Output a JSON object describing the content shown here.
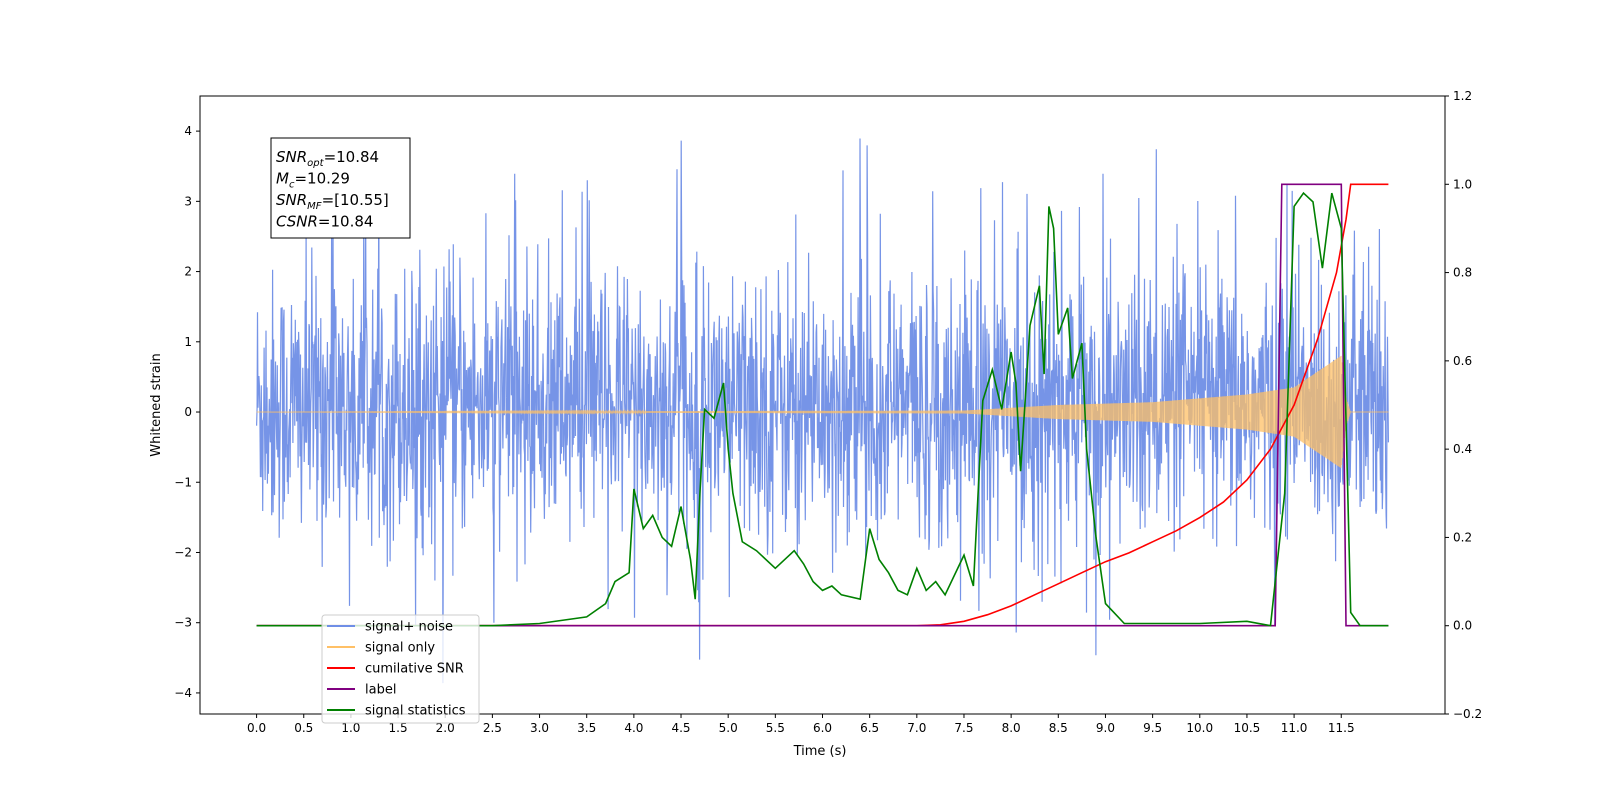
{
  "chart_data": {
    "type": "line",
    "xlabel": "Time (s)",
    "ylabel": "Whitened strain",
    "ylabel_right": "",
    "xlim": [
      -0.6,
      12.6
    ],
    "ylim": [
      -4.3,
      4.5
    ],
    "ylim_right": [
      -0.2,
      1.2
    ],
    "x_ticks": [
      0.0,
      0.5,
      1.0,
      1.5,
      2.0,
      2.5,
      3.0,
      3.5,
      4.0,
      4.5,
      5.0,
      5.5,
      6.0,
      6.5,
      7.0,
      7.5,
      8.0,
      8.5,
      9.0,
      9.5,
      10.0,
      10.5,
      11.0,
      11.5
    ],
    "x_tick_labels": [
      "0.0",
      "0.5",
      "1.0",
      "1.5",
      "2.0",
      "2.5",
      "3.0",
      "3.5",
      "4.0",
      "4.5",
      "5.0",
      "5.5",
      "6.0",
      "6.5",
      "7.0",
      "7.5",
      "8.0",
      "8.5",
      "9.0",
      "9.5",
      "10.0",
      "10.5",
      "11.0",
      "11.5"
    ],
    "y_ticks": [
      4,
      3,
      2,
      1,
      0,
      -1,
      -2,
      -3,
      -4
    ],
    "y_tick_labels": [
      "4",
      "3",
      "2",
      "1",
      "0",
      "−1",
      "−2",
      "−3",
      "−4"
    ],
    "y_ticks_right": [
      1.2,
      1.0,
      0.8,
      0.6,
      0.4,
      0.2,
      0.0,
      -0.2
    ],
    "y_tick_labels_right": [
      "1.2",
      "1.0",
      "0.8",
      "0.6",
      "0.4",
      "0.2",
      "0.0",
      "−0.2"
    ],
    "grid": false,
    "legend_position": "lower-left",
    "annotation_box": {
      "lines": [
        {
          "sym": "SNR",
          "sub": "opt",
          "val": "=10.84"
        },
        {
          "sym": "M",
          "sub": "c",
          "val": "=10.29"
        },
        {
          "sym": "SNR",
          "sub": "MF",
          "val": "=[10.55]"
        },
        {
          "sym": "CSNR",
          "sub": "",
          "val": "=10.84"
        }
      ]
    },
    "series": [
      {
        "name": "signal+ noise",
        "axis": "left",
        "color": "#6f8ee6",
        "kind": "noise",
        "x_range": [
          0.0,
          12.0
        ],
        "typical_envelope": [
          -2.0,
          2.3
        ],
        "peak_max": 4.1,
        "peak_min": -3.9
      },
      {
        "name": "signal only",
        "axis": "left",
        "color": "#ffc066",
        "kind": "chirp",
        "x_range": [
          0.0,
          12.0
        ],
        "amplitude_points": [
          [
            0,
            0.0
          ],
          [
            7.5,
            0.02
          ],
          [
            8.5,
            0.1
          ],
          [
            9.5,
            0.14
          ],
          [
            10.5,
            0.25
          ],
          [
            11.0,
            0.35
          ],
          [
            11.5,
            0.8
          ],
          [
            11.55,
            0.2
          ],
          [
            11.6,
            0.0
          ],
          [
            12.0,
            0.0
          ]
        ]
      },
      {
        "name": "cumilative SNR",
        "axis": "right",
        "color": "#ff0000",
        "points": [
          [
            0,
            0
          ],
          [
            7.0,
            0
          ],
          [
            7.25,
            0.002
          ],
          [
            7.5,
            0.01
          ],
          [
            7.75,
            0.025
          ],
          [
            8.0,
            0.045
          ],
          [
            8.25,
            0.07
          ],
          [
            8.5,
            0.095
          ],
          [
            8.75,
            0.12
          ],
          [
            9.0,
            0.145
          ],
          [
            9.25,
            0.165
          ],
          [
            9.5,
            0.19
          ],
          [
            9.75,
            0.215
          ],
          [
            10.0,
            0.245
          ],
          [
            10.25,
            0.28
          ],
          [
            10.5,
            0.33
          ],
          [
            10.75,
            0.4
          ],
          [
            11.0,
            0.5
          ],
          [
            11.25,
            0.65
          ],
          [
            11.45,
            0.8
          ],
          [
            11.55,
            0.92
          ],
          [
            11.6,
            1.0
          ],
          [
            12.0,
            1.0
          ]
        ]
      },
      {
        "name": "label",
        "axis": "right",
        "color": "#800080",
        "points": [
          [
            0,
            0
          ],
          [
            10.8,
            0
          ],
          [
            10.87,
            1.0
          ],
          [
            11.5,
            1.0
          ],
          [
            11.55,
            0
          ],
          [
            12.0,
            0
          ]
        ]
      },
      {
        "name": "signal statistics",
        "axis": "right",
        "color": "#008000",
        "points": [
          [
            0,
            0
          ],
          [
            2.5,
            0
          ],
          [
            3.0,
            0.005
          ],
          [
            3.5,
            0.02
          ],
          [
            3.7,
            0.05
          ],
          [
            3.8,
            0.1
          ],
          [
            3.95,
            0.12
          ],
          [
            4.0,
            0.31
          ],
          [
            4.1,
            0.22
          ],
          [
            4.2,
            0.25
          ],
          [
            4.3,
            0.2
          ],
          [
            4.4,
            0.18
          ],
          [
            4.5,
            0.27
          ],
          [
            4.6,
            0.15
          ],
          [
            4.65,
            0.06
          ],
          [
            4.7,
            0.3
          ],
          [
            4.75,
            0.49
          ],
          [
            4.85,
            0.47
          ],
          [
            4.95,
            0.55
          ],
          [
            5.0,
            0.4
          ],
          [
            5.05,
            0.3
          ],
          [
            5.15,
            0.19
          ],
          [
            5.3,
            0.17
          ],
          [
            5.5,
            0.13
          ],
          [
            5.7,
            0.17
          ],
          [
            5.8,
            0.14
          ],
          [
            5.9,
            0.1
          ],
          [
            6.0,
            0.08
          ],
          [
            6.1,
            0.09
          ],
          [
            6.2,
            0.07
          ],
          [
            6.4,
            0.06
          ],
          [
            6.5,
            0.22
          ],
          [
            6.6,
            0.15
          ],
          [
            6.7,
            0.12
          ],
          [
            6.8,
            0.08
          ],
          [
            6.9,
            0.07
          ],
          [
            7.0,
            0.13
          ],
          [
            7.1,
            0.08
          ],
          [
            7.2,
            0.1
          ],
          [
            7.3,
            0.07
          ],
          [
            7.5,
            0.16
          ],
          [
            7.6,
            0.09
          ],
          [
            7.7,
            0.51
          ],
          [
            7.8,
            0.58
          ],
          [
            7.9,
            0.49
          ],
          [
            8.0,
            0.62
          ],
          [
            8.05,
            0.55
          ],
          [
            8.1,
            0.35
          ],
          [
            8.2,
            0.68
          ],
          [
            8.3,
            0.77
          ],
          [
            8.35,
            0.57
          ],
          [
            8.4,
            0.95
          ],
          [
            8.45,
            0.9
          ],
          [
            8.5,
            0.66
          ],
          [
            8.6,
            0.72
          ],
          [
            8.65,
            0.56
          ],
          [
            8.75,
            0.64
          ],
          [
            8.8,
            0.4
          ],
          [
            8.9,
            0.2
          ],
          [
            9.0,
            0.05
          ],
          [
            9.2,
            0.005
          ],
          [
            10.0,
            0.005
          ],
          [
            10.5,
            0.01
          ],
          [
            10.75,
            0.0
          ],
          [
            10.9,
            0.3
          ],
          [
            11.0,
            0.95
          ],
          [
            11.1,
            0.98
          ],
          [
            11.2,
            0.96
          ],
          [
            11.3,
            0.81
          ],
          [
            11.4,
            0.98
          ],
          [
            11.5,
            0.9
          ],
          [
            11.6,
            0.03
          ],
          [
            11.7,
            0
          ],
          [
            12.0,
            0
          ]
        ]
      }
    ]
  },
  "legend": {
    "items": [
      {
        "label": "signal+ noise",
        "color": "#6f8ee6"
      },
      {
        "label": "signal only",
        "color": "#ffc066"
      },
      {
        "label": "cumilative SNR",
        "color": "#ff0000"
      },
      {
        "label": "label",
        "color": "#800080"
      },
      {
        "label": "signal statistics",
        "color": "#008000"
      }
    ]
  }
}
